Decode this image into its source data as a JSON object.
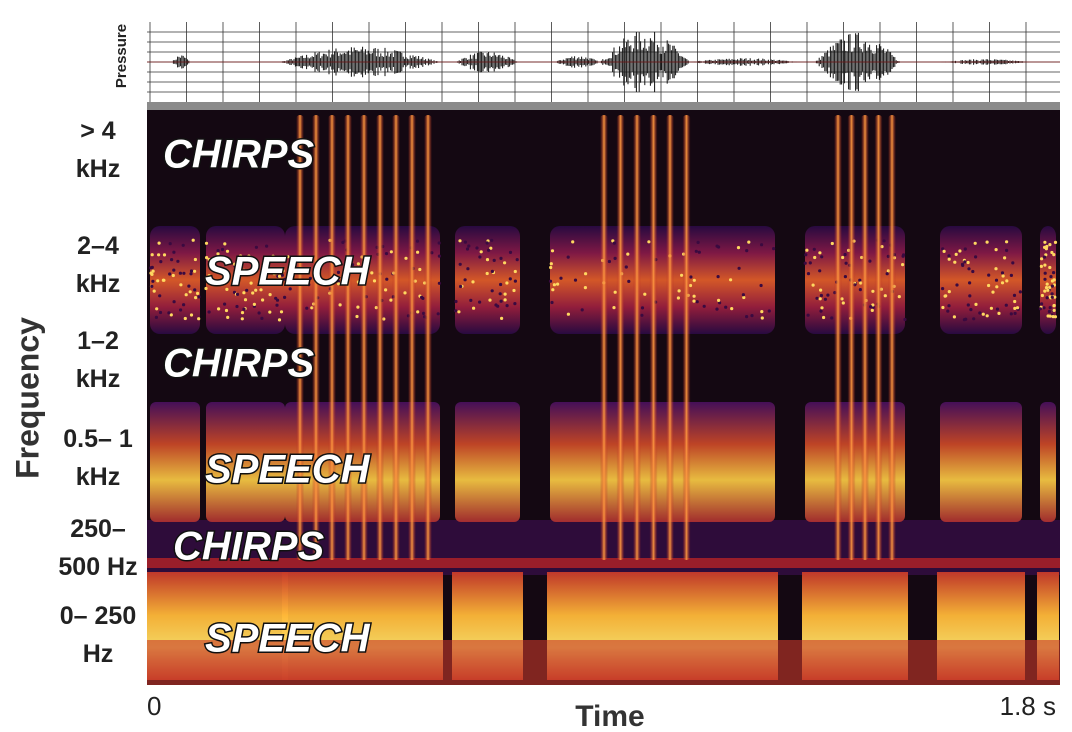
{
  "chart_data": {
    "type": "spectrogram",
    "waveform_label": "Pressure",
    "x_label": "Time",
    "y_label": "Frequency",
    "xlim": [
      0,
      1.8
    ],
    "xticks": [
      0,
      {
        "value": 1.8,
        "label": "1.8 s"
      }
    ],
    "categories": [
      "> 4 kHz",
      "2–4 kHz",
      "1–2 kHz",
      "0.5– 1 kHz",
      "250– 500 Hz",
      "0– 250 Hz"
    ],
    "annotations": [
      "CHIRPS",
      "SPEECH",
      "CHIRPS",
      "SPEECH",
      "CHIRPS",
      "SPEECH"
    ]
  }
}
